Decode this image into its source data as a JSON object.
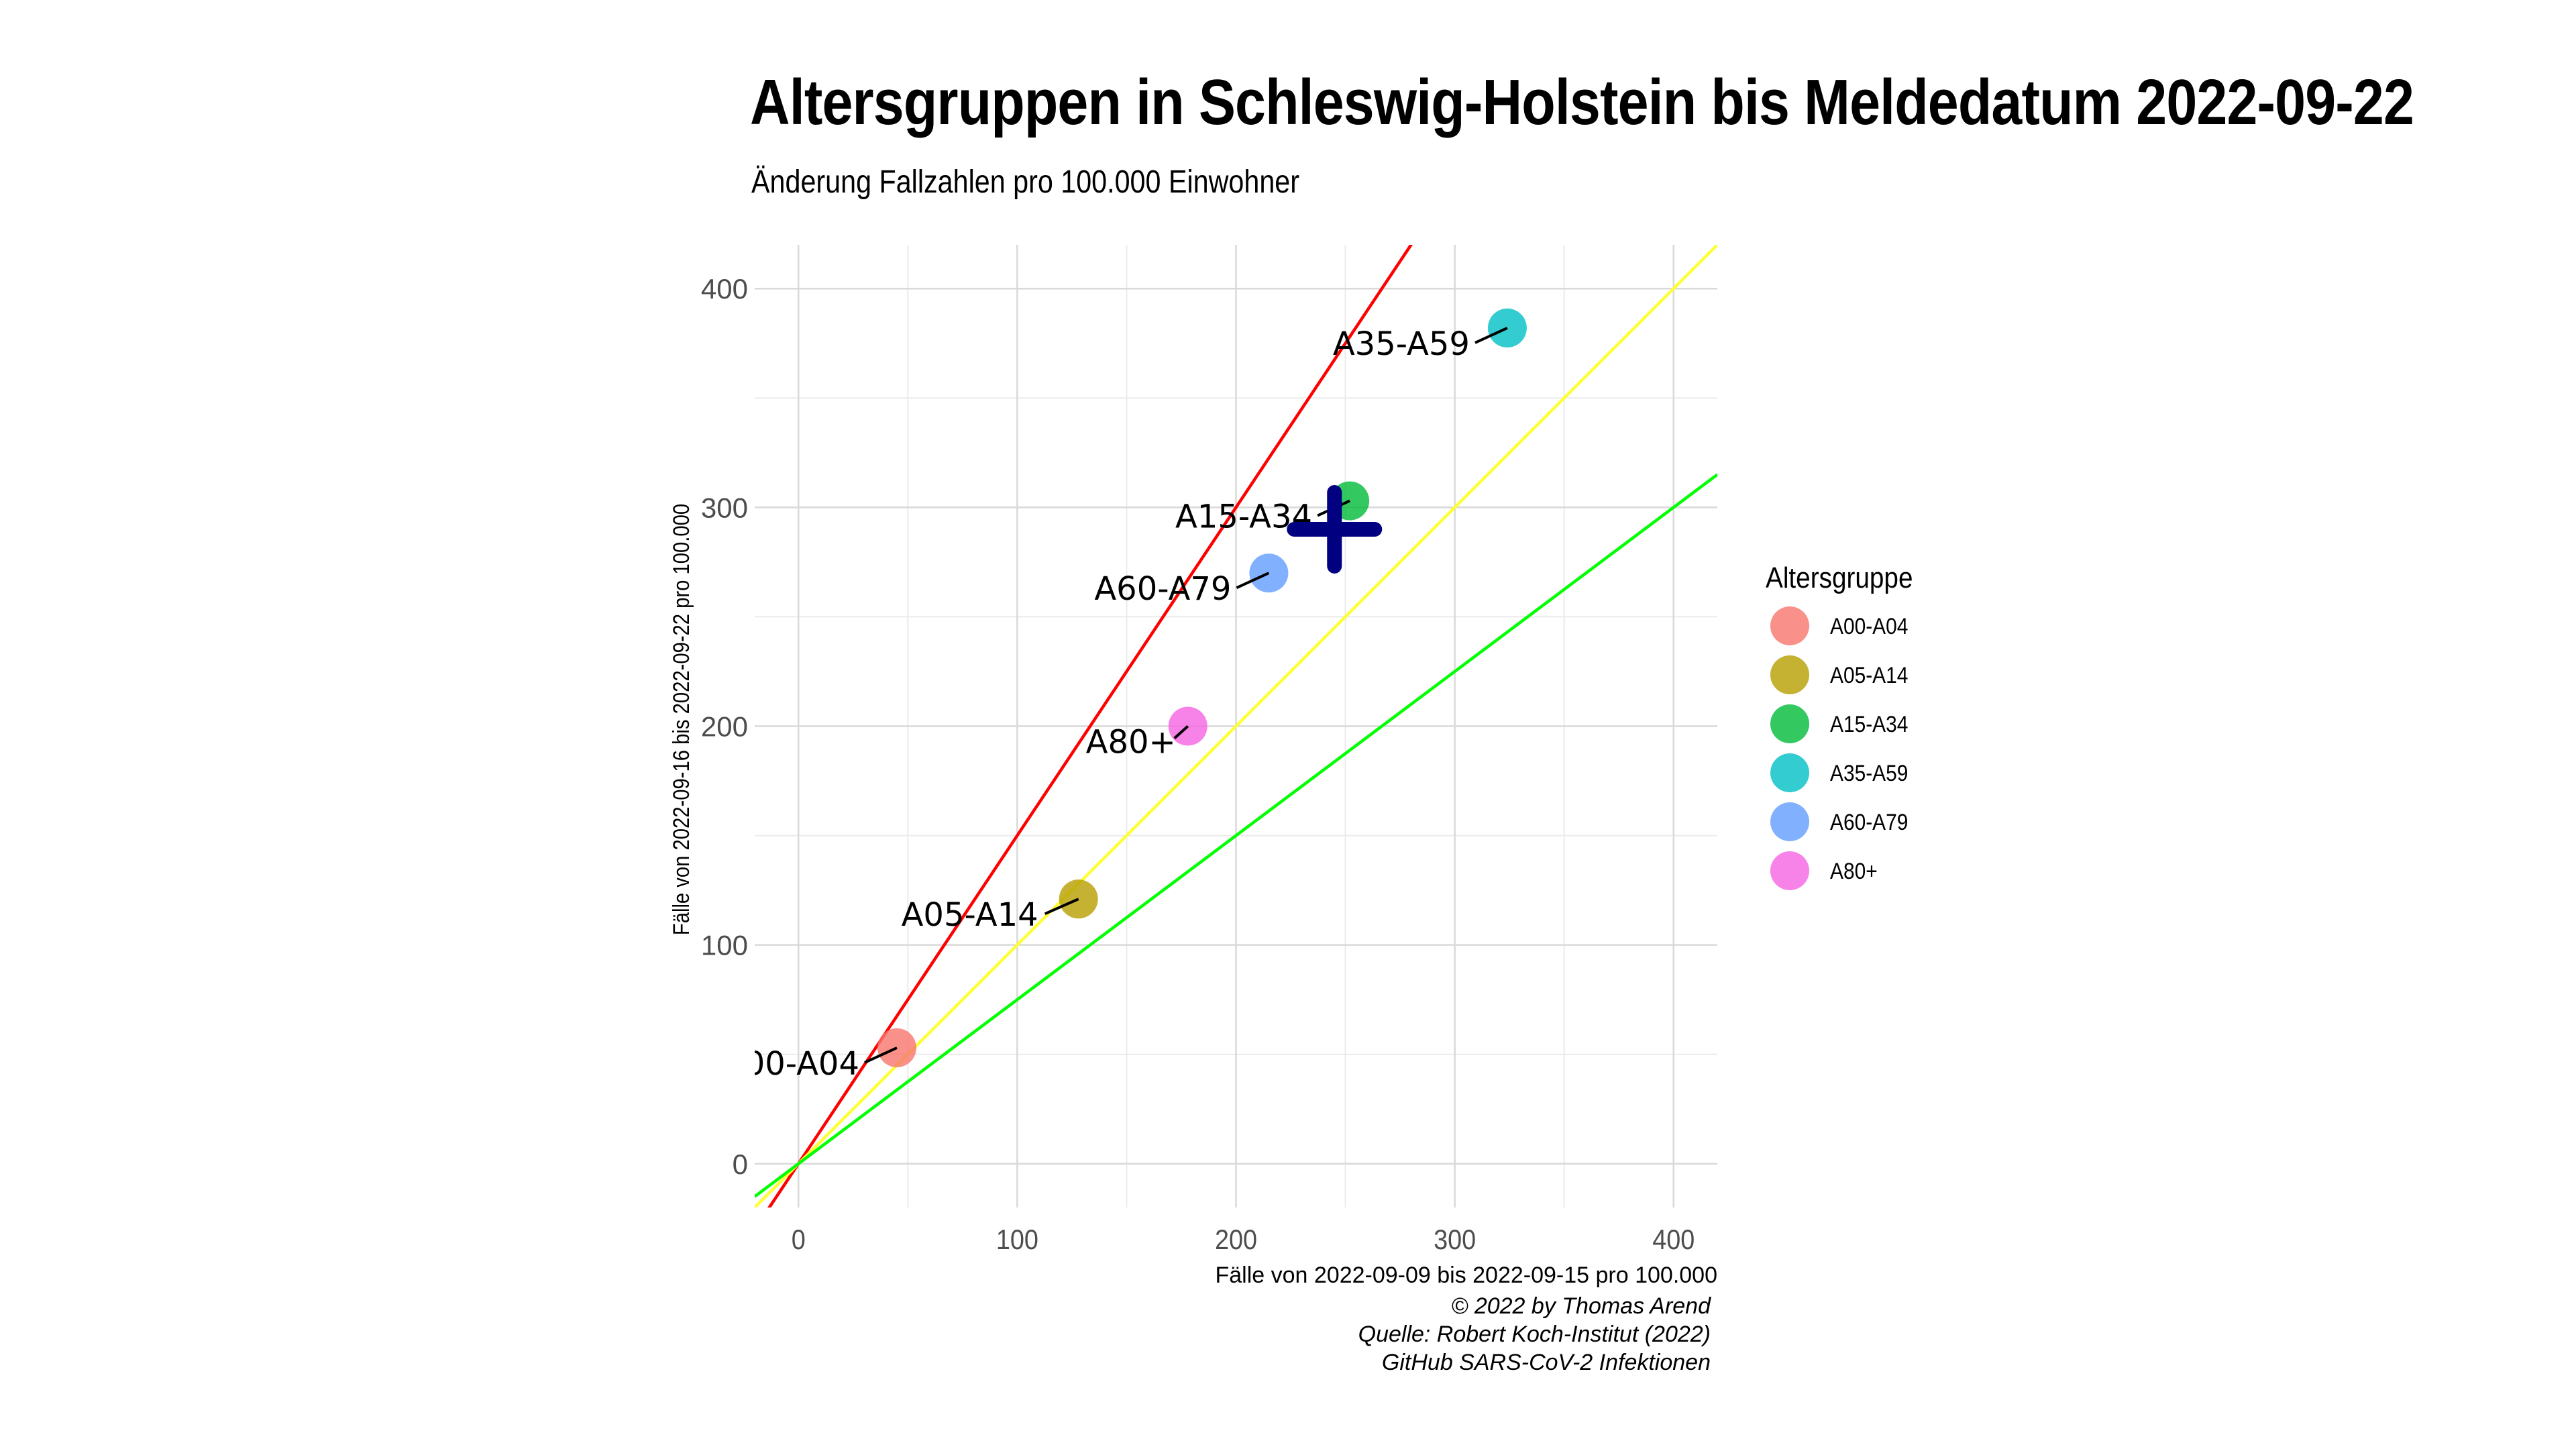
{
  "title": "Altersgruppen in Schleswig-Holstein bis Meldedatum 2022-09-22",
  "subtitle": "Änderung Fallzahlen pro 100.000 Einwohner",
  "caption": [
    "© 2022 by Thomas Arend",
    "Quelle: Robert Koch-Institut (2022)",
    "GitHub SARS-CoV-2 Infektionen"
  ],
  "chart_data": {
    "type": "scatter",
    "title": "Altersgruppen in Schleswig-Holstein bis Meldedatum 2022-09-22",
    "subtitle": "Änderung Fallzahlen pro 100.000 Einwohner",
    "xlabel": "Fälle von 2022-09-09 bis 2022-09-15 pro 100.000",
    "ylabel": "Fälle von 2022-09-16 bis 2022-09-22 pro 100.000",
    "xlim": [
      -20,
      420
    ],
    "ylim": [
      -20,
      420
    ],
    "xticks": [
      0,
      100,
      200,
      300,
      400
    ],
    "yticks": [
      0,
      100,
      200,
      300,
      400
    ],
    "grid": true,
    "legend_title": "Altersgruppe",
    "legend_position": "right",
    "points": [
      {
        "label": "A00-A04",
        "x": 45,
        "y": 53,
        "color": "#F8766D"
      },
      {
        "label": "A05-A14",
        "x": 128,
        "y": 121,
        "color": "#B79F00"
      },
      {
        "label": "A15-A34",
        "x": 252,
        "y": 303,
        "color": "#00BA38"
      },
      {
        "label": "A35-A59",
        "x": 324,
        "y": 382,
        "color": "#00BFC4"
      },
      {
        "label": "A60-A79",
        "x": 215,
        "y": 270,
        "color": "#619CFF"
      },
      {
        "label": "A80+",
        "x": 178,
        "y": 200,
        "color": "#F564E3"
      }
    ],
    "reference_lines": [
      {
        "slope": 1.5,
        "color": "#FF0000"
      },
      {
        "slope": 1.0,
        "color": "#FFFF33"
      },
      {
        "slope": 0.75,
        "color": "#00FF00"
      }
    ],
    "overall_marker": {
      "shape": "cross",
      "x": 245,
      "y": 290,
      "color": "#000080"
    }
  }
}
